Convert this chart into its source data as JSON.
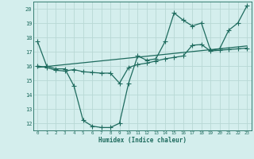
{
  "background_color": "#d4eeed",
  "grid_color": "#b8d8d5",
  "line_color": "#1e6b5e",
  "xlabel": "Humidex (Indice chaleur)",
  "xlim": [
    -0.5,
    23.5
  ],
  "ylim": [
    11.5,
    20.5
  ],
  "yticks": [
    12,
    13,
    14,
    15,
    16,
    17,
    18,
    19,
    20
  ],
  "xticks": [
    0,
    1,
    2,
    3,
    4,
    5,
    6,
    7,
    8,
    9,
    10,
    11,
    12,
    13,
    14,
    15,
    16,
    17,
    18,
    19,
    20,
    21,
    22,
    23
  ],
  "line1_x": [
    0,
    1,
    2,
    3,
    4,
    5,
    6,
    7,
    8,
    9,
    10,
    11,
    12,
    13,
    14,
    15,
    16,
    17,
    18,
    19,
    20,
    21,
    22,
    23
  ],
  "line1_y": [
    17.7,
    16.0,
    15.8,
    15.8,
    14.6,
    12.2,
    11.8,
    11.7,
    11.7,
    12.0,
    14.8,
    16.7,
    16.4,
    16.5,
    17.7,
    19.7,
    19.2,
    18.8,
    19.0,
    17.1,
    17.2,
    18.5,
    19.0,
    20.2
  ],
  "line2_x": [
    0,
    1,
    2,
    3,
    4,
    5,
    6,
    7,
    8,
    9,
    10,
    11,
    12,
    13,
    14,
    15,
    16,
    17,
    18,
    19,
    20,
    21,
    22,
    23
  ],
  "line2_y": [
    16.0,
    15.9,
    15.7,
    15.65,
    15.75,
    15.6,
    15.55,
    15.5,
    15.5,
    14.8,
    15.9,
    16.1,
    16.2,
    16.35,
    16.5,
    16.6,
    16.7,
    17.45,
    17.5,
    17.05,
    17.1,
    17.15,
    17.2,
    17.25
  ],
  "line3_x": [
    0,
    23
  ],
  "line3_y": [
    15.9,
    17.4
  ]
}
